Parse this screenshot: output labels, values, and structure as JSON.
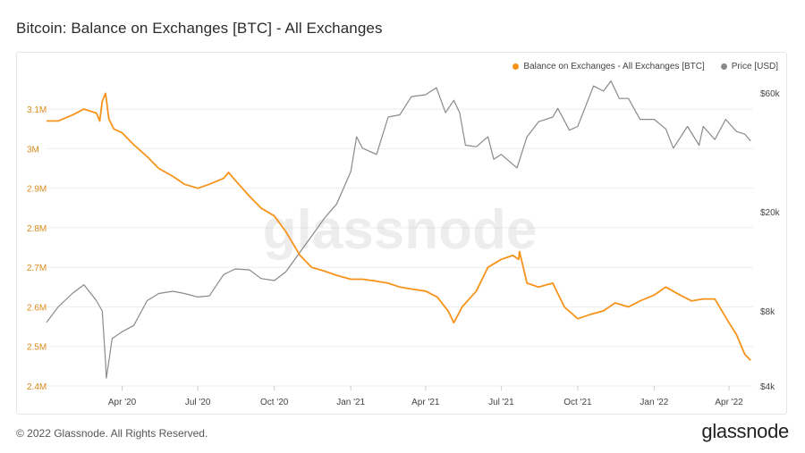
{
  "title": "Bitcoin: Balance on Exchanges [BTC] - All Exchanges",
  "footer": {
    "copyright": "© 2022 Glassnode. All Rights Reserved.",
    "logo": "glassnode"
  },
  "watermark": "glassnode",
  "colors": {
    "balance": "#f7931a",
    "price": "#8a8a8a",
    "left_axis_text": "#d98a1a",
    "right_axis_text": "#444444",
    "grid": "#eeeeee"
  },
  "chart_data": {
    "type": "line",
    "title": "Bitcoin: Balance on Exchanges [BTC] - All Exchanges",
    "legend_position": "top-right",
    "grid": true,
    "x_ticks": [
      "Apr '20",
      "Jul '20",
      "Oct '20",
      "Jan '21",
      "Apr '21",
      "Jul '21",
      "Oct '21",
      "Jan '22",
      "Apr '22"
    ],
    "x_range": [
      "2020-01-01",
      "2022-04-30"
    ],
    "y_left": {
      "ticks": [
        "2.4M",
        "2.5M",
        "2.6M",
        "2.7M",
        "2.8M",
        "2.9M",
        "3M",
        "3.1M"
      ],
      "range": [
        2400000,
        3150000
      ]
    },
    "y_right": {
      "scale": "log",
      "ticks": [
        "$4k",
        "$8k",
        "$20k",
        "$60k"
      ],
      "range": [
        4000,
        62000
      ]
    },
    "series": [
      {
        "name": "Balance on Exchanges - All Exchanges [BTC]",
        "axis": "left",
        "x": [
          "2020-01-01",
          "2020-01-15",
          "2020-02-01",
          "2020-02-15",
          "2020-03-01",
          "2020-03-05",
          "2020-03-08",
          "2020-03-12",
          "2020-03-16",
          "2020-03-22",
          "2020-04-01",
          "2020-04-15",
          "2020-05-01",
          "2020-05-15",
          "2020-06-01",
          "2020-06-15",
          "2020-07-01",
          "2020-07-15",
          "2020-08-01",
          "2020-08-07",
          "2020-08-15",
          "2020-09-01",
          "2020-09-15",
          "2020-10-01",
          "2020-10-15",
          "2020-11-01",
          "2020-11-15",
          "2020-12-01",
          "2020-12-15",
          "2021-01-01",
          "2021-01-15",
          "2021-02-01",
          "2021-02-15",
          "2021-03-01",
          "2021-03-15",
          "2021-04-01",
          "2021-04-15",
          "2021-04-28",
          "2021-05-05",
          "2021-05-15",
          "2021-06-01",
          "2021-06-15",
          "2021-07-01",
          "2021-07-15",
          "2021-07-22",
          "2021-07-23",
          "2021-08-01",
          "2021-08-15",
          "2021-09-01",
          "2021-09-15",
          "2021-10-01",
          "2021-10-15",
          "2021-11-01",
          "2021-11-15",
          "2021-12-01",
          "2021-12-15",
          "2022-01-01",
          "2022-01-15",
          "2022-02-01",
          "2022-02-15",
          "2022-03-01",
          "2022-03-15",
          "2022-04-01",
          "2022-04-10",
          "2022-04-20",
          "2022-04-27"
        ],
        "values": [
          3070000,
          3070000,
          3085000,
          3100000,
          3090000,
          3070000,
          3120000,
          3140000,
          3075000,
          3050000,
          3040000,
          3010000,
          2980000,
          2950000,
          2930000,
          2910000,
          2900000,
          2910000,
          2925000,
          2940000,
          2920000,
          2880000,
          2850000,
          2830000,
          2790000,
          2730000,
          2700000,
          2690000,
          2680000,
          2670000,
          2670000,
          2665000,
          2660000,
          2650000,
          2645000,
          2640000,
          2625000,
          2590000,
          2560000,
          2600000,
          2640000,
          2700000,
          2720000,
          2730000,
          2720000,
          2740000,
          2660000,
          2650000,
          2660000,
          2600000,
          2570000,
          2580000,
          2590000,
          2610000,
          2600000,
          2615000,
          2630000,
          2650000,
          2630000,
          2615000,
          2620000,
          2620000,
          2560000,
          2530000,
          2480000,
          2465000
        ]
      },
      {
        "name": "Price [USD]",
        "axis": "right",
        "x": [
          "2020-01-01",
          "2020-01-15",
          "2020-02-01",
          "2020-02-15",
          "2020-03-01",
          "2020-03-08",
          "2020-03-12",
          "2020-03-13",
          "2020-03-20",
          "2020-04-01",
          "2020-04-15",
          "2020-05-01",
          "2020-05-15",
          "2020-06-01",
          "2020-06-15",
          "2020-07-01",
          "2020-07-15",
          "2020-08-01",
          "2020-08-15",
          "2020-09-01",
          "2020-09-15",
          "2020-10-01",
          "2020-10-15",
          "2020-11-01",
          "2020-11-15",
          "2020-12-01",
          "2020-12-15",
          "2021-01-01",
          "2021-01-08",
          "2021-01-15",
          "2021-02-01",
          "2021-02-15",
          "2021-03-01",
          "2021-03-15",
          "2021-04-01",
          "2021-04-14",
          "2021-04-25",
          "2021-05-05",
          "2021-05-12",
          "2021-05-19",
          "2021-06-01",
          "2021-06-15",
          "2021-06-22",
          "2021-07-01",
          "2021-07-20",
          "2021-08-01",
          "2021-08-15",
          "2021-09-01",
          "2021-09-07",
          "2021-09-21",
          "2021-10-01",
          "2021-10-20",
          "2021-11-01",
          "2021-11-10",
          "2021-11-20",
          "2021-12-01",
          "2021-12-15",
          "2022-01-01",
          "2022-01-15",
          "2022-01-24",
          "2022-02-10",
          "2022-02-24",
          "2022-03-01",
          "2022-03-15",
          "2022-03-28",
          "2022-04-10",
          "2022-04-20",
          "2022-04-27"
        ],
        "values": [
          7200,
          8300,
          9400,
          10200,
          8800,
          8000,
          5000,
          4300,
          6200,
          6600,
          7000,
          8800,
          9400,
          9600,
          9400,
          9100,
          9200,
          11200,
          11800,
          11700,
          10800,
          10600,
          11500,
          13800,
          16000,
          19000,
          21500,
          29000,
          40000,
          36000,
          34000,
          48000,
          49000,
          58000,
          59000,
          63000,
          50000,
          56000,
          50000,
          37000,
          36500,
          40000,
          32500,
          34000,
          30000,
          40000,
          46000,
          48000,
          52000,
          42500,
          44000,
          64000,
          61000,
          67000,
          57000,
          57000,
          47000,
          47000,
          43000,
          36000,
          44000,
          37000,
          44000,
          39000,
          47000,
          42000,
          41000,
          38500
        ]
      }
    ]
  }
}
